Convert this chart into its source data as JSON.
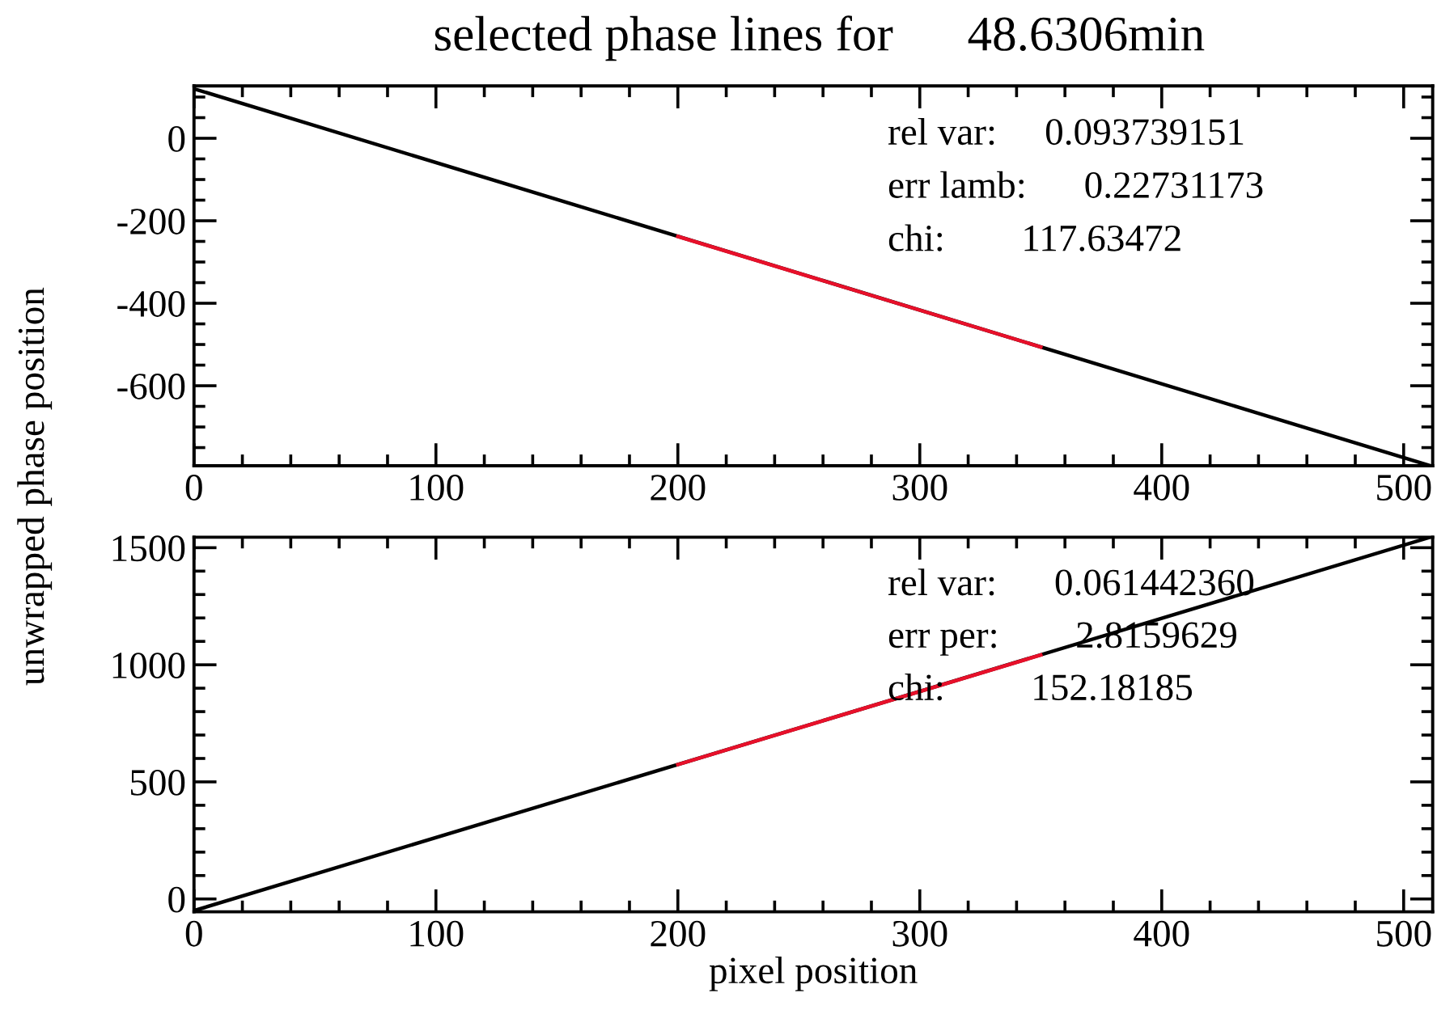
{
  "chart_data": [
    {
      "type": "line",
      "title": "selected phase lines for      48.6306min",
      "ylabel": "unwrapped phase position",
      "xlim": [
        0,
        512
      ],
      "ylim": [
        -794,
        127
      ],
      "xticks": [
        0,
        {
          "value": 20,
          "label": null
        },
        {
          "value": 40,
          "label": null
        },
        {
          "value": 60,
          "label": null
        },
        {
          "value": 80,
          "label": null
        },
        100,
        {
          "value": 120,
          "label": null
        },
        {
          "value": 140,
          "label": null
        },
        {
          "value": 160,
          "label": null
        },
        {
          "value": 180,
          "label": null
        },
        200,
        {
          "value": 220,
          "label": null
        },
        {
          "value": 240,
          "label": null
        },
        {
          "value": 260,
          "label": null
        },
        {
          "value": 280,
          "label": null
        },
        300,
        {
          "value": 320,
          "label": null
        },
        {
          "value": 340,
          "label": null
        },
        {
          "value": 360,
          "label": null
        },
        {
          "value": 380,
          "label": null
        },
        400,
        {
          "value": 420,
          "label": null
        },
        {
          "value": 440,
          "label": null
        },
        {
          "value": 460,
          "label": null
        },
        {
          "value": 480,
          "label": null
        },
        500
      ],
      "yticks": [
        {
          "value": -750,
          "label": null
        },
        {
          "value": -700,
          "label": null
        },
        {
          "value": -650,
          "label": null
        },
        -600,
        {
          "value": -550,
          "label": null
        },
        {
          "value": -500,
          "label": null
        },
        {
          "value": -450,
          "label": null
        },
        -400,
        {
          "value": -350,
          "label": null
        },
        {
          "value": -300,
          "label": null
        },
        {
          "value": -250,
          "label": null
        },
        -200,
        {
          "value": -150,
          "label": null
        },
        {
          "value": -100,
          "label": null
        },
        {
          "value": -50,
          "label": null
        },
        0,
        {
          "value": 50,
          "label": null
        },
        {
          "value": 100,
          "label": null
        }
      ],
      "series": [
        {
          "color": "#000000",
          "x": [
            0,
            511
          ],
          "values": [
            120,
            -794
          ]
        },
        {
          "color": "#e8102a",
          "x": [
            200,
            350
          ],
          "values": [
            -238,
            -506
          ]
        }
      ],
      "annotations": [
        "rel var:     0.093739151",
        "err lamb:      0.22731173",
        "chi:        117.63472"
      ],
      "grid": false,
      "legend": false,
      "marker": "none",
      "line_style": "solid"
    },
    {
      "type": "line",
      "xlabel": "pixel position",
      "xlim": [
        0,
        512
      ],
      "ylim": [
        -55,
        1545
      ],
      "xticks": [
        0,
        {
          "value": 20,
          "label": null
        },
        {
          "value": 40,
          "label": null
        },
        {
          "value": 60,
          "label": null
        },
        {
          "value": 80,
          "label": null
        },
        100,
        {
          "value": 120,
          "label": null
        },
        {
          "value": 140,
          "label": null
        },
        {
          "value": 160,
          "label": null
        },
        {
          "value": 180,
          "label": null
        },
        200,
        {
          "value": 220,
          "label": null
        },
        {
          "value": 240,
          "label": null
        },
        {
          "value": 260,
          "label": null
        },
        {
          "value": 280,
          "label": null
        },
        300,
        {
          "value": 320,
          "label": null
        },
        {
          "value": 340,
          "label": null
        },
        {
          "value": 360,
          "label": null
        },
        {
          "value": 380,
          "label": null
        },
        400,
        {
          "value": 420,
          "label": null
        },
        {
          "value": 440,
          "label": null
        },
        {
          "value": 460,
          "label": null
        },
        {
          "value": 480,
          "label": null
        },
        500
      ],
      "yticks": [
        0,
        {
          "value": 100,
          "label": null
        },
        {
          "value": 200,
          "label": null
        },
        {
          "value": 300,
          "label": null
        },
        {
          "value": 400,
          "label": null
        },
        500,
        {
          "value": 600,
          "label": null
        },
        {
          "value": 700,
          "label": null
        },
        {
          "value": 800,
          "label": null
        },
        {
          "value": 900,
          "label": null
        },
        1000,
        {
          "value": 1100,
          "label": null
        },
        {
          "value": 1200,
          "label": null
        },
        {
          "value": 1300,
          "label": null
        },
        {
          "value": 1400,
          "label": null
        },
        1500
      ],
      "series": [
        {
          "color": "#000000",
          "x": [
            0,
            511
          ],
          "values": [
            -50,
            1545
          ]
        },
        {
          "color": "#e8102a",
          "x": [
            200,
            350
          ],
          "values": [
            574,
            1042
          ]
        }
      ],
      "annotations": [
        "rel var:      0.061442360",
        "err per:        2.8159629",
        "chi:         152.18185"
      ],
      "grid": false,
      "legend": false,
      "marker": "none",
      "line_style": "solid"
    }
  ]
}
